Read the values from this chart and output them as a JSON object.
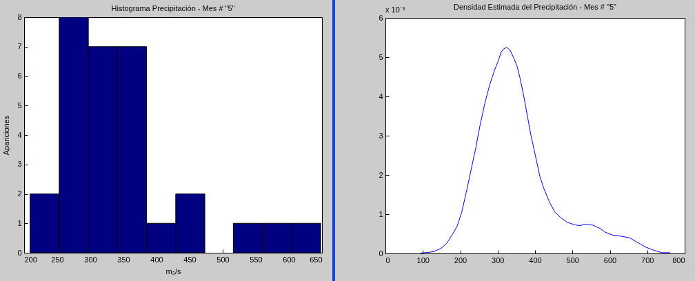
{
  "chart_data": [
    {
      "type": "histogram",
      "title": "Histograma Precipitación - Mes # \"5\"",
      "xlabel": "m₃/s",
      "ylabel": "Apariciones",
      "bins": [
        209,
        253,
        297,
        341,
        385,
        429,
        473,
        516,
        560,
        604,
        648
      ],
      "values": [
        2,
        8,
        7,
        7,
        1,
        2,
        0,
        1,
        1,
        1
      ],
      "color": "#000080",
      "xlim": [
        200,
        650
      ],
      "xticks": [
        200,
        250,
        300,
        350,
        400,
        450,
        500,
        550,
        600,
        650
      ],
      "ylim": [
        0,
        8
      ],
      "yticks": [
        0,
        1,
        2,
        3,
        4,
        5,
        6,
        7,
        8
      ]
    },
    {
      "type": "line",
      "title": "Densidad Estimada del Precipitación - Mes # \"5\"",
      "annotations": [
        "x 10⁻³"
      ],
      "x": [
        95,
        118,
        130,
        149,
        164,
        180,
        192,
        204,
        216,
        229,
        241,
        253,
        266,
        278,
        291,
        303,
        309,
        315,
        324,
        333,
        342,
        352,
        361,
        370,
        380,
        389,
        401,
        413,
        423,
        438,
        453,
        469,
        487,
        506,
        518,
        536,
        555,
        573,
        588,
        607,
        629,
        653,
        672,
        696,
        715,
        739,
        761
      ],
      "values": [
        0.01,
        0.03,
        0.05,
        0.13,
        0.26,
        0.5,
        0.7,
        1.05,
        1.55,
        2.13,
        2.66,
        3.27,
        3.83,
        4.27,
        4.65,
        4.94,
        5.12,
        5.2,
        5.25,
        5.18,
        5.0,
        4.77,
        4.42,
        4.0,
        3.48,
        3.01,
        2.49,
        1.96,
        1.67,
        1.32,
        1.05,
        0.91,
        0.79,
        0.73,
        0.71,
        0.74,
        0.72,
        0.64,
        0.54,
        0.47,
        0.44,
        0.4,
        0.29,
        0.16,
        0.09,
        0.02,
        0.02
      ],
      "color": "#0000ff",
      "xlim": [
        0,
        800
      ],
      "xticks": [
        0,
        100,
        200,
        300,
        400,
        500,
        600,
        700,
        800
      ],
      "ylim": [
        0,
        6
      ],
      "yticks": [
        0,
        1,
        2,
        3,
        4,
        5,
        6
      ]
    }
  ]
}
